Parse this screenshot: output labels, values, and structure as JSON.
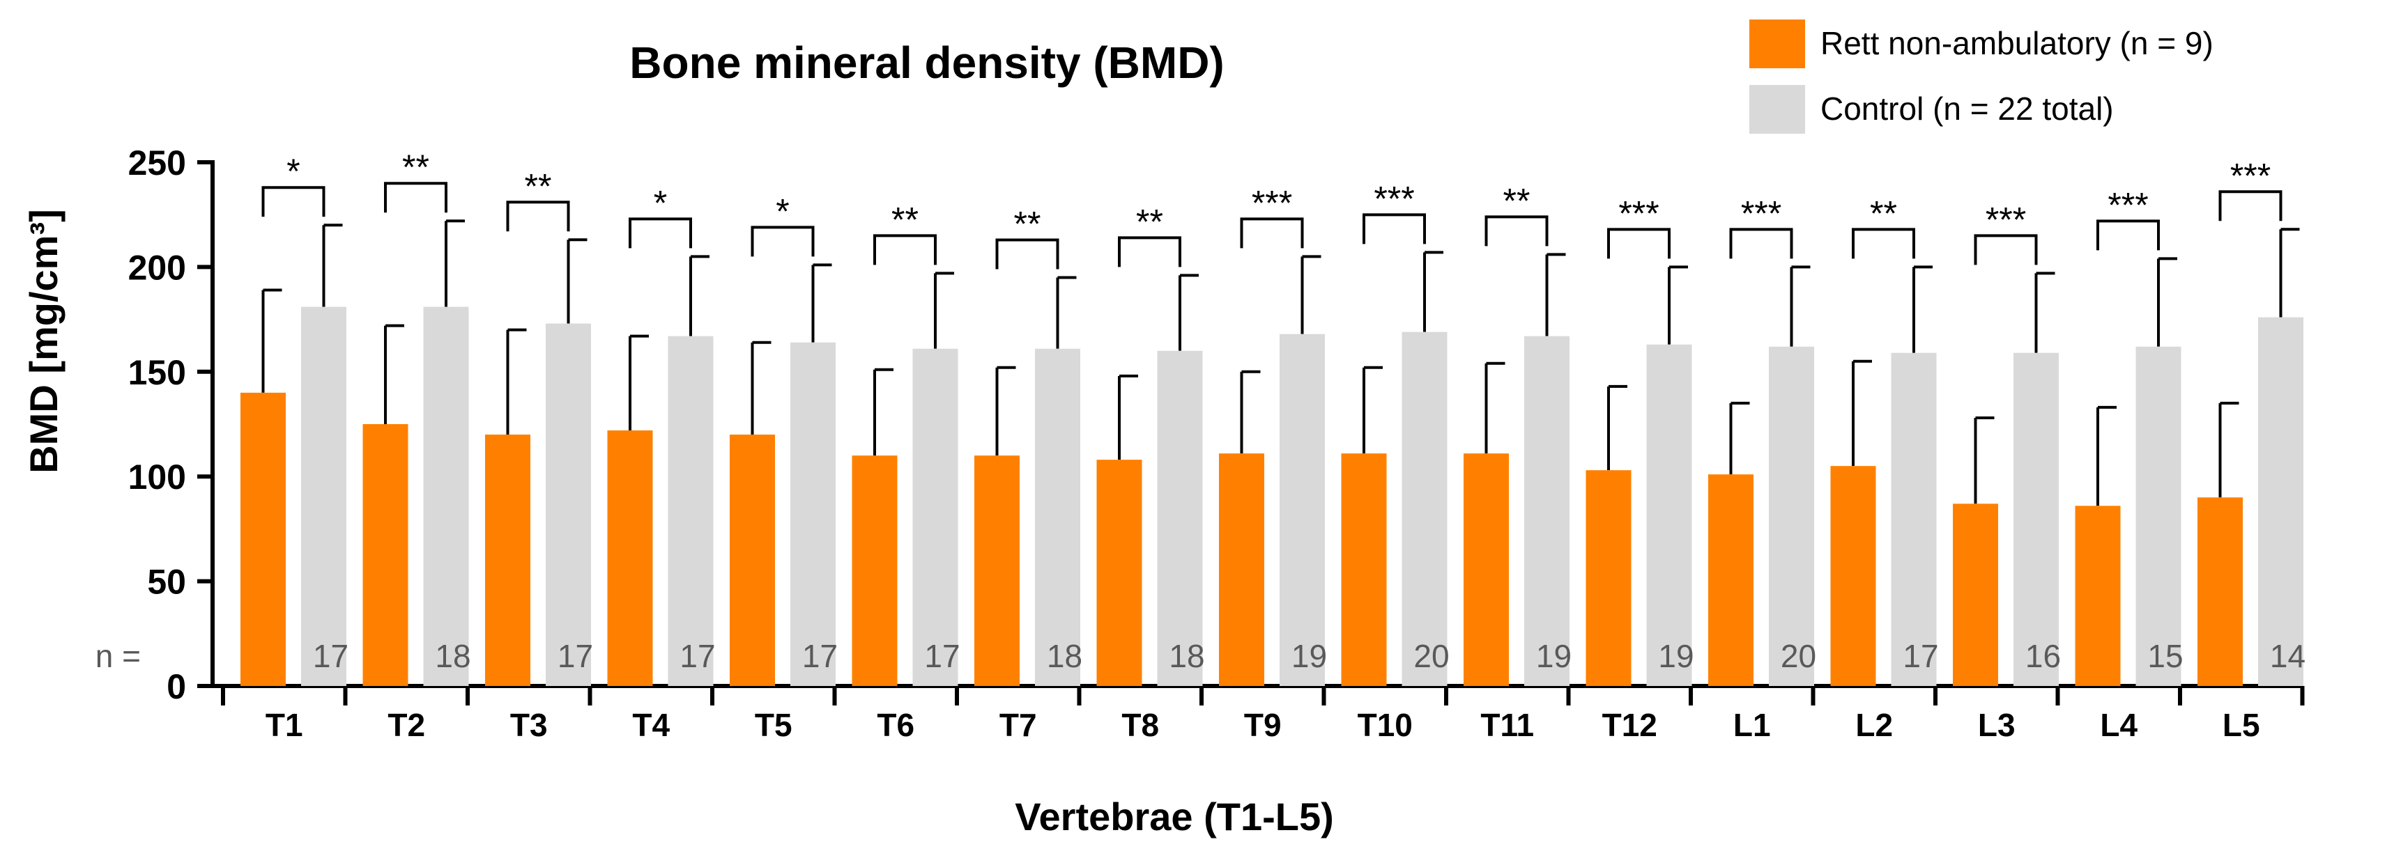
{
  "chart_data": {
    "type": "bar",
    "title": "Bone mineral density (BMD)",
    "xlabel": "Vertebrae (T1-L5)",
    "ylabel": "BMD [mg/cm³]",
    "ylim": [
      0,
      250
    ],
    "yticks": [
      "0",
      "50",
      "100",
      "150",
      "200",
      "250"
    ],
    "grid": false,
    "legend_position": "top-right",
    "categories": [
      "T1",
      "T2",
      "T3",
      "T4",
      "T5",
      "T6",
      "T7",
      "T8",
      "T9",
      "T10",
      "T11",
      "T12",
      "L1",
      "L2",
      "L3",
      "L4",
      "L5"
    ],
    "series": [
      {
        "name": "Rett non-ambulatory (n = 9)",
        "color": "#ff8000",
        "values": [
          140,
          125,
          120,
          122,
          120,
          110,
          110,
          108,
          111,
          111,
          111,
          103,
          101,
          105,
          87,
          86,
          90
        ],
        "error": [
          49,
          47,
          50,
          45,
          44,
          41,
          42,
          40,
          39,
          41,
          43,
          40,
          34,
          50,
          41,
          47,
          45
        ]
      },
      {
        "name": "Control (n = 22 total)",
        "color": "#d9d9d9",
        "values": [
          181,
          181,
          173,
          167,
          164,
          161,
          161,
          160,
          168,
          169,
          167,
          163,
          162,
          159,
          159,
          162,
          176
        ],
        "error": [
          39,
          41,
          40,
          38,
          37,
          36,
          34,
          36,
          37,
          38,
          39,
          37,
          38,
          41,
          38,
          42,
          42
        ]
      }
    ],
    "n_label": "n =",
    "control_n": [
      "17",
      "18",
      "17",
      "17",
      "17",
      "17",
      "18",
      "18",
      "19",
      "20",
      "19",
      "19",
      "20",
      "17",
      "16",
      "15",
      "14"
    ],
    "significance": [
      "*",
      "**",
      "**",
      "*",
      "*",
      "**",
      "**",
      "**",
      "***",
      "***",
      "**",
      "***",
      "***",
      "**",
      "***",
      "***",
      "***"
    ]
  }
}
